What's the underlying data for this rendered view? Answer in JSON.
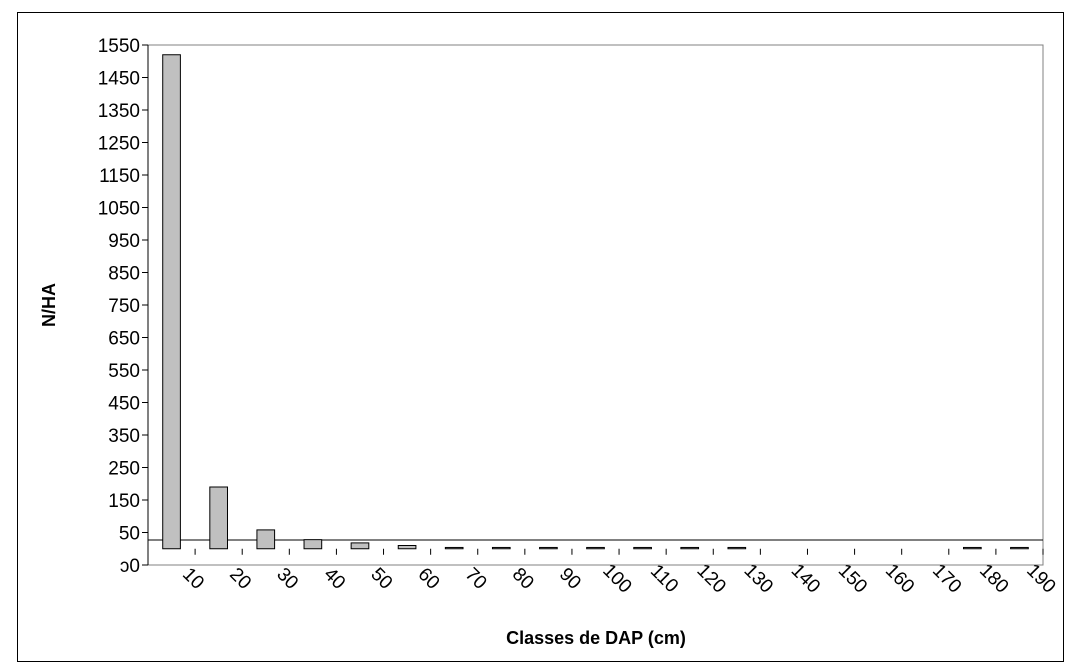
{
  "chart_data": {
    "type": "bar",
    "xlabel": "Classes de DAP (cm)",
    "ylabel": "N/HA",
    "categories": [
      "10",
      "20",
      "30",
      "40",
      "50",
      "60",
      "70",
      "80",
      "90",
      "100",
      "110",
      "120",
      "130",
      "140",
      "150",
      "160",
      "170",
      "180",
      "190"
    ],
    "values": [
      1520,
      190,
      58,
      28,
      18,
      10,
      4,
      4,
      4,
      4,
      4,
      4,
      4,
      0,
      0,
      0,
      0,
      4,
      4
    ],
    "yticks": [
      "ɔ0",
      "50",
      "150",
      "250",
      "350",
      "450",
      "550",
      "650",
      "750",
      "850",
      "950",
      "1050",
      "1150",
      "1250",
      "1350",
      "1450",
      "1550"
    ],
    "ylim": [
      -50,
      1550
    ],
    "grid": false,
    "legend": "none",
    "bar_color": "#c0c0c0"
  }
}
